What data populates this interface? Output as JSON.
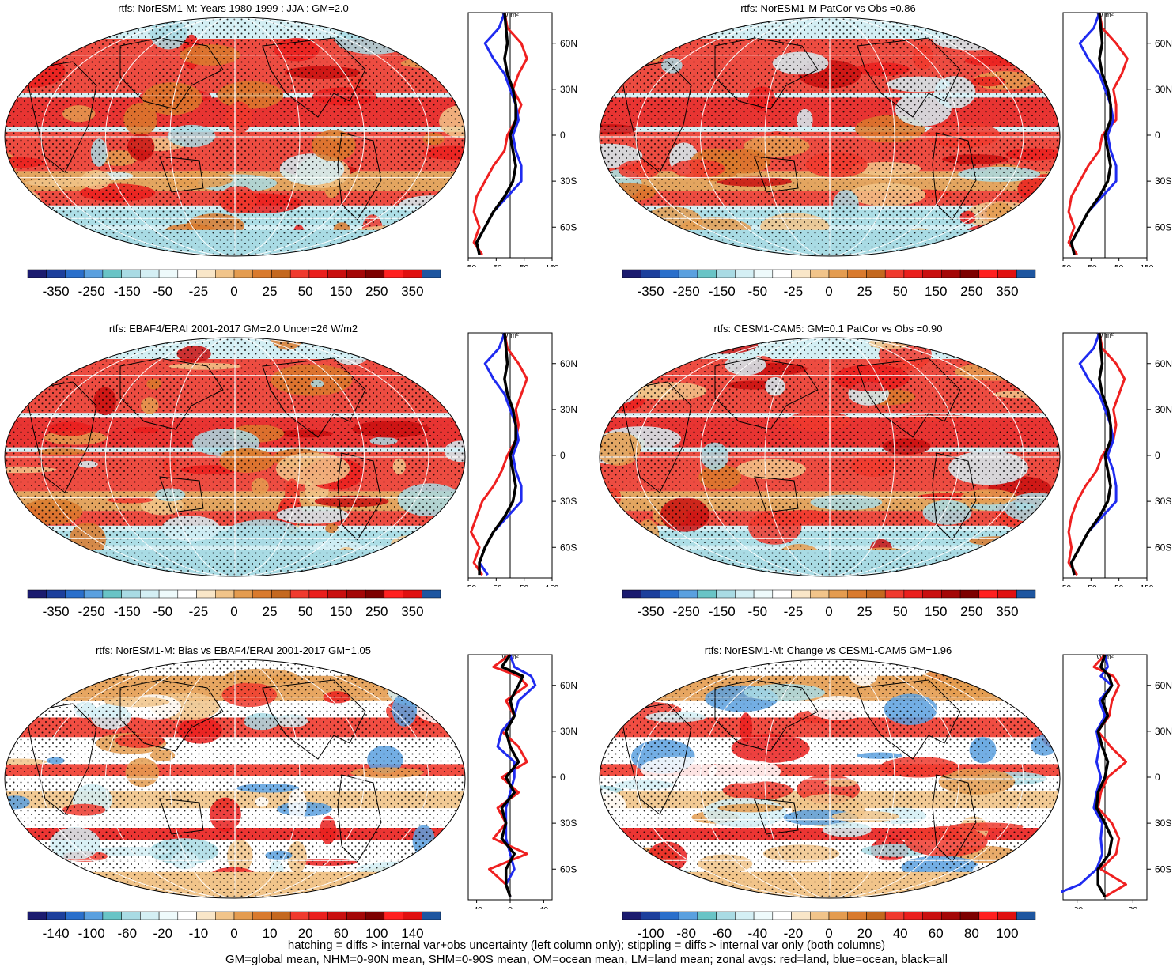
{
  "palette_abs": [
    "#1b1b6f",
    "#1c3f9c",
    "#2a6fcb",
    "#5aa0df",
    "#69c4c6",
    "#a9dbe4",
    "#d4eff4",
    "#eefafb",
    "#ffffff",
    "#f9e6c8",
    "#f1c48a",
    "#e49c50",
    "#d97a2d",
    "#c4681f",
    "#f03a2e",
    "#ea1f1d",
    "#c90f0f",
    "#a40707",
    "#7d0000",
    "#ff2020",
    "#e01010",
    "#1e56a0"
  ],
  "palette_diff": [
    "#1b1b6f",
    "#1c3f9c",
    "#2a6fcb",
    "#5aa0df",
    "#69c4c6",
    "#a9dbe4",
    "#d4eff4",
    "#eefafb",
    "#ffffff",
    "#f9e6c8",
    "#f1c48a",
    "#e49c50",
    "#d97a2d",
    "#c4681f",
    "#f03a2e",
    "#ea1f1d",
    "#c90f0f",
    "#a40707",
    "#7d0000",
    "#ff2020",
    "#e01010",
    "#1e56a0"
  ],
  "colors": {
    "land": "#ef2020",
    "ocean": "#1f2bf0",
    "all": "#000000"
  },
  "zonal_lat_ticks": [
    "60N",
    "30N",
    "0",
    "30S",
    "60S"
  ],
  "zonal_unit": "W m²",
  "footnote": {
    "line1": "hatching = diffs > internal var+obs uncertainty (left column only); stippling = diffs > internal var only (both columns)",
    "line2": "GM=global mean, NHM=0-90N mean, SHM=0-90S mean, OM=ocean mean, LM=land mean; zonal avgs: red=land, blue=ocean, black=all"
  },
  "chart_data": [
    {
      "type": "heatmap",
      "title": "rtfs: NorESM1-M: Years 1980-1999 : JJA : GM=2.0",
      "colorbar_labels": [
        "-350",
        "-250",
        "-150",
        "-50",
        "-25",
        "0",
        "25",
        "50",
        "150",
        "250",
        "350"
      ],
      "zonal_xticks": [
        "-150",
        "-50",
        "50",
        "150"
      ],
      "zonal_xlim": [
        -150,
        150
      ],
      "zonal_series": [
        {
          "name": "land",
          "lat": [
            80,
            70,
            60,
            50,
            40,
            30,
            20,
            10,
            0,
            -10,
            -20,
            -30,
            -40,
            -50,
            -60,
            -70,
            -78
          ],
          "values": [
            -20,
            -10,
            40,
            60,
            30,
            10,
            40,
            20,
            -10,
            -20,
            -60,
            -90,
            -120,
            -130,
            -110,
            -130,
            -100
          ]
        },
        {
          "name": "ocean",
          "lat": [
            80,
            70,
            60,
            50,
            40,
            30,
            20,
            10,
            0,
            -10,
            -20,
            -30,
            -40,
            -50,
            -60,
            -70,
            -78
          ],
          "values": [
            -20,
            -40,
            -90,
            -60,
            -20,
            0,
            20,
            30,
            10,
            20,
            40,
            40,
            -10,
            -60,
            -90,
            -120,
            -110
          ]
        },
        {
          "name": "all",
          "lat": [
            80,
            70,
            60,
            50,
            40,
            30,
            20,
            10,
            0,
            -10,
            -20,
            -30,
            -40,
            -50,
            -60,
            -70,
            -78
          ],
          "values": [
            -20,
            -15,
            -10,
            -20,
            -10,
            10,
            20,
            20,
            0,
            10,
            20,
            10,
            -20,
            -60,
            -90,
            -120,
            -110
          ]
        }
      ]
    },
    {
      "type": "heatmap",
      "title": "rtfs: NorESM1-M PatCor vs Obs =0.86",
      "colorbar_labels": [
        "-350",
        "-250",
        "-150",
        "-50",
        "-25",
        "0",
        "25",
        "50",
        "150",
        "250",
        "350"
      ],
      "zonal_xticks": [
        "-150",
        "-50",
        "50",
        "150"
      ],
      "zonal_xlim": [
        -150,
        150
      ],
      "zonal_series": [
        {
          "name": "land",
          "lat": [
            80,
            70,
            60,
            50,
            40,
            30,
            20,
            10,
            0,
            -10,
            -20,
            -30,
            -40,
            -50,
            -60,
            -70,
            -78
          ],
          "values": [
            -20,
            -10,
            40,
            80,
            60,
            30,
            40,
            40,
            -10,
            -20,
            -60,
            -90,
            -120,
            -130,
            -110,
            -130,
            -100
          ]
        },
        {
          "name": "ocean",
          "lat": [
            80,
            70,
            60,
            50,
            40,
            30,
            20,
            10,
            0,
            -10,
            -20,
            -30,
            -40,
            -50,
            -60,
            -70,
            -78
          ],
          "values": [
            -20,
            -40,
            -90,
            -60,
            -20,
            0,
            20,
            30,
            10,
            20,
            40,
            40,
            -10,
            -60,
            -90,
            -120,
            -110
          ]
        },
        {
          "name": "all",
          "lat": [
            80,
            70,
            60,
            50,
            40,
            30,
            20,
            10,
            0,
            -10,
            -20,
            -30,
            -40,
            -50,
            -60,
            -70,
            -78
          ],
          "values": [
            -20,
            -15,
            -10,
            -20,
            -10,
            10,
            20,
            20,
            0,
            10,
            20,
            10,
            -20,
            -60,
            -90,
            -120,
            -110
          ]
        }
      ]
    },
    {
      "type": "heatmap",
      "title": "rtfs: EBAF4/ERAI 2001-2017 GM=2.0 Uncer=26 W/m2",
      "colorbar_labels": [
        "-350",
        "-250",
        "-150",
        "-50",
        "-25",
        "0",
        "25",
        "50",
        "150",
        "250",
        "350"
      ],
      "zonal_xticks": [
        "-150",
        "-50",
        "50",
        "150"
      ],
      "zonal_xlim": [
        -150,
        150
      ],
      "zonal_series": [
        {
          "name": "land",
          "lat": [
            80,
            70,
            60,
            50,
            40,
            30,
            20,
            10,
            0,
            -10,
            -20,
            -30,
            -40,
            -50,
            -60,
            -70,
            -78
          ],
          "values": [
            -20,
            -10,
            30,
            60,
            40,
            20,
            30,
            20,
            -10,
            -30,
            -60,
            -100,
            -120,
            -140,
            -110,
            -130,
            -100
          ]
        },
        {
          "name": "ocean",
          "lat": [
            80,
            70,
            60,
            50,
            40,
            30,
            20,
            10,
            0,
            -10,
            -20,
            -30,
            -40,
            -50,
            -60,
            -70,
            -78
          ],
          "values": [
            -20,
            -40,
            -90,
            -60,
            -20,
            0,
            20,
            30,
            10,
            20,
            40,
            40,
            -10,
            -60,
            -90,
            -110,
            -80
          ]
        },
        {
          "name": "all",
          "lat": [
            80,
            70,
            60,
            50,
            40,
            30,
            20,
            10,
            0,
            -10,
            -20,
            -30,
            -40,
            -50,
            -60,
            -70,
            -78
          ],
          "values": [
            -20,
            -15,
            -10,
            -20,
            -10,
            10,
            20,
            20,
            0,
            10,
            20,
            10,
            -20,
            -60,
            -90,
            -110,
            -110
          ]
        }
      ]
    },
    {
      "type": "heatmap",
      "title": "rtfs: CESM1-CAM5: GM=0.1 PatCor vs Obs =0.90",
      "colorbar_labels": [
        "-350",
        "-250",
        "-150",
        "-50",
        "-25",
        "0",
        "25",
        "50",
        "150",
        "250",
        "350"
      ],
      "zonal_xticks": [
        "-150",
        "-50",
        "50",
        "150"
      ],
      "zonal_xlim": [
        -150,
        150
      ],
      "zonal_series": [
        {
          "name": "land",
          "lat": [
            80,
            70,
            60,
            50,
            40,
            30,
            20,
            10,
            0,
            -10,
            -20,
            -30,
            -40,
            -50,
            -60,
            -70,
            -78
          ],
          "values": [
            -20,
            -10,
            40,
            70,
            50,
            30,
            40,
            30,
            -10,
            -30,
            -70,
            -100,
            -120,
            -130,
            -120,
            -130,
            -100
          ]
        },
        {
          "name": "ocean",
          "lat": [
            80,
            70,
            60,
            50,
            40,
            30,
            20,
            10,
            0,
            -10,
            -20,
            -30,
            -40,
            -50,
            -60,
            -70,
            -78
          ],
          "values": [
            -20,
            -40,
            -90,
            -60,
            -20,
            0,
            20,
            30,
            10,
            30,
            40,
            40,
            -10,
            -60,
            -90,
            -120,
            -110
          ]
        },
        {
          "name": "all",
          "lat": [
            80,
            70,
            60,
            50,
            40,
            30,
            20,
            10,
            0,
            -10,
            -20,
            -30,
            -40,
            -50,
            -60,
            -70,
            -78
          ],
          "values": [
            -20,
            -15,
            -10,
            -20,
            -10,
            10,
            20,
            20,
            0,
            10,
            20,
            10,
            -20,
            -60,
            -90,
            -120,
            -110
          ]
        }
      ]
    },
    {
      "type": "heatmap",
      "title": "rtfs: NorESM1-M: Bias vs EBAF4/ERAI 2001-2017 GM=1.05",
      "colorbar_labels": [
        "-140",
        "-100",
        "-60",
        "-20",
        "-10",
        "0",
        "10",
        "20",
        "60",
        "100",
        "140"
      ],
      "zonal_xticks": [
        "-40",
        "0",
        "40"
      ],
      "zonal_xlim": [
        -50,
        50
      ],
      "zonal_series": [
        {
          "name": "land",
          "lat": [
            80,
            72,
            66,
            60,
            50,
            40,
            30,
            20,
            10,
            0,
            -10,
            -20,
            -30,
            -40,
            -50,
            -60,
            -70,
            -78
          ],
          "values": [
            0,
            -20,
            10,
            20,
            -5,
            5,
            -10,
            10,
            20,
            -10,
            10,
            -15,
            -5,
            -20,
            20,
            -25,
            -5,
            0
          ]
        },
        {
          "name": "ocean",
          "lat": [
            80,
            72,
            66,
            60,
            50,
            40,
            30,
            20,
            10,
            0,
            -10,
            -20,
            -30,
            -40,
            -50,
            -60,
            -70,
            -78
          ],
          "values": [
            0,
            5,
            25,
            30,
            10,
            5,
            -10,
            -15,
            5,
            5,
            0,
            -5,
            -5,
            -5,
            0,
            5,
            -5,
            0
          ]
        },
        {
          "name": "all",
          "lat": [
            80,
            72,
            66,
            60,
            50,
            40,
            30,
            20,
            10,
            0,
            -10,
            -20,
            -30,
            -40,
            -50,
            -60,
            -70,
            -78
          ],
          "values": [
            0,
            -10,
            15,
            10,
            0,
            5,
            -5,
            0,
            10,
            -5,
            5,
            -10,
            -5,
            -10,
            5,
            -5,
            -5,
            0
          ]
        }
      ]
    },
    {
      "type": "heatmap",
      "title": "rtfs: NorESM1-M: Change vs CESM1-CAM5 GM=1.96",
      "colorbar_labels": [
        "-100",
        "-80",
        "-60",
        "-40",
        "-20",
        "0",
        "20",
        "40",
        "60",
        "80",
        "100"
      ],
      "zonal_xticks": [
        "-20",
        "20"
      ],
      "zonal_xlim": [
        -30,
        30
      ],
      "zonal_series": [
        {
          "name": "land",
          "lat": [
            80,
            72,
            66,
            60,
            50,
            40,
            30,
            20,
            10,
            0,
            -10,
            -20,
            -30,
            -40,
            -50,
            -60,
            -70,
            -78
          ],
          "values": [
            0,
            -8,
            6,
            10,
            5,
            3,
            -5,
            4,
            15,
            2,
            -3,
            -5,
            5,
            10,
            8,
            -3,
            15,
            0
          ]
        },
        {
          "name": "ocean",
          "lat": [
            80,
            72,
            66,
            60,
            50,
            40,
            30,
            20,
            10,
            0,
            -10,
            -20,
            -30,
            -40,
            -50,
            -60,
            -70,
            -78
          ],
          "values": [
            0,
            2,
            -3,
            5,
            -4,
            0,
            -6,
            -4,
            -6,
            -3,
            -6,
            -8,
            -2,
            -3,
            -2,
            -6,
            -18,
            -40
          ]
        },
        {
          "name": "all",
          "lat": [
            80,
            72,
            66,
            60,
            50,
            40,
            30,
            20,
            10,
            0,
            -10,
            -20,
            -30,
            -40,
            -50,
            -60,
            -70,
            -78
          ],
          "values": [
            0,
            -3,
            3,
            5,
            -2,
            2,
            -5,
            -2,
            2,
            0,
            -5,
            -6,
            0,
            5,
            3,
            -5,
            -5,
            0
          ]
        }
      ]
    }
  ]
}
